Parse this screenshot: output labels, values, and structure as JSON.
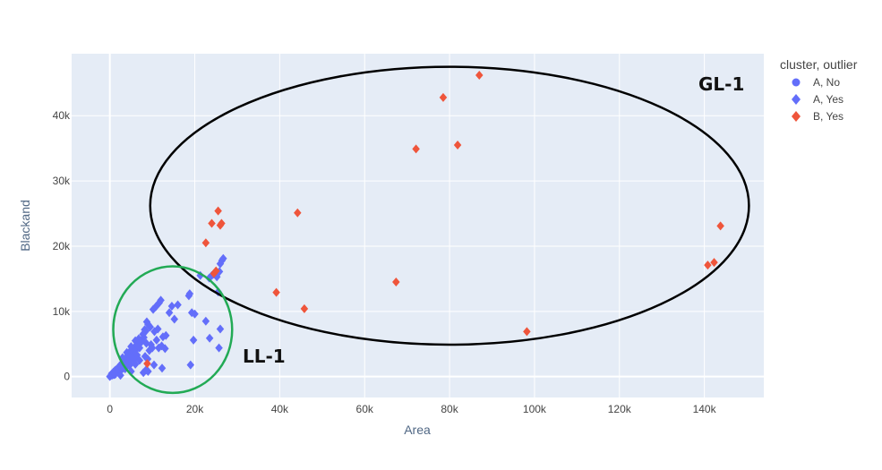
{
  "chart_data": {
    "type": "scatter",
    "xlabel": "Area",
    "ylabel": "Blackand",
    "xlim": [
      -9000,
      154000
    ],
    "ylim": [
      -3200,
      49500
    ],
    "x_ticks": [
      0,
      20000,
      40000,
      60000,
      80000,
      100000,
      120000,
      140000
    ],
    "x_tick_labels": [
      "0",
      "20k",
      "40k",
      "60k",
      "80k",
      "100k",
      "120k",
      "140k"
    ],
    "y_ticks": [
      0,
      10000,
      20000,
      30000,
      40000
    ],
    "y_tick_labels": [
      "0",
      "10k",
      "20k",
      "30k",
      "40k"
    ],
    "grid": true,
    "legend": {
      "title": "cluster, outlier",
      "placement": "top-right",
      "entries": [
        {
          "label": "A, No",
          "color": "#636efa",
          "symbol": "circle"
        },
        {
          "label": "A, Yes",
          "color": "#636efa",
          "symbol": "diamond"
        },
        {
          "label": "B, Yes",
          "color": "#ef553b",
          "symbol": "diamond"
        }
      ]
    },
    "series": [
      {
        "name": "A, No",
        "color": "#636efa",
        "symbol": "circle",
        "points": [
          [
            400,
            300
          ],
          [
            700,
            500
          ],
          [
            1000,
            700
          ],
          [
            1300,
            900
          ],
          [
            1600,
            1100
          ],
          [
            2000,
            1300
          ],
          [
            2400,
            1600
          ],
          [
            2800,
            1900
          ],
          [
            3200,
            2200
          ],
          [
            3600,
            2500
          ],
          [
            4000,
            2800
          ],
          [
            4500,
            3100
          ],
          [
            5000,
            3400
          ],
          [
            5500,
            3800
          ],
          [
            6000,
            4100
          ],
          [
            1500,
            600
          ],
          [
            2500,
            1000
          ],
          [
            3500,
            1500
          ],
          [
            4500,
            2000
          ],
          [
            5500,
            2600
          ],
          [
            3000,
            1200
          ],
          [
            4200,
            1800
          ],
          [
            900,
            200
          ],
          [
            1800,
            900
          ],
          [
            2700,
            1400
          ]
        ]
      },
      {
        "name": "A, Yes",
        "color": "#636efa",
        "symbol": "diamond",
        "points": [
          [
            0,
            0
          ],
          [
            500,
            200
          ],
          [
            1000,
            500
          ],
          [
            1500,
            800
          ],
          [
            2000,
            1100
          ],
          [
            2500,
            1300
          ],
          [
            3000,
            1600
          ],
          [
            3500,
            2000
          ],
          [
            4000,
            2400
          ],
          [
            4500,
            2800
          ],
          [
            5000,
            3200
          ],
          [
            5500,
            3600
          ],
          [
            6000,
            4000
          ],
          [
            6500,
            4500
          ],
          [
            7000,
            5000
          ],
          [
            7500,
            5400
          ],
          [
            8000,
            6000
          ],
          [
            8500,
            7000
          ],
          [
            9000,
            8000
          ],
          [
            9500,
            7600
          ],
          [
            8700,
            8400
          ],
          [
            8200,
            7200
          ],
          [
            7800,
            6500
          ],
          [
            6800,
            5800
          ],
          [
            6200,
            4800
          ],
          [
            5600,
            4200
          ],
          [
            5200,
            3000
          ],
          [
            4800,
            3900
          ],
          [
            4300,
            3300
          ],
          [
            3800,
            2700
          ],
          [
            3300,
            1800
          ],
          [
            2800,
            1500
          ],
          [
            2200,
            900
          ],
          [
            1800,
            700
          ],
          [
            1200,
            400
          ],
          [
            3000,
            2900
          ],
          [
            4000,
            3700
          ],
          [
            5000,
            4600
          ],
          [
            6000,
            5500
          ],
          [
            7000,
            4400
          ],
          [
            7200,
            5300
          ],
          [
            5800,
            2600
          ],
          [
            4600,
            1700
          ],
          [
            3600,
            1200
          ],
          [
            6400,
            3300
          ],
          [
            8600,
            5100
          ],
          [
            10200,
            10300
          ],
          [
            10800,
            10700
          ],
          [
            11600,
            11300
          ],
          [
            12000,
            11700
          ],
          [
            10500,
            6900
          ],
          [
            11000,
            5600
          ],
          [
            12500,
            6100
          ],
          [
            13200,
            6300
          ],
          [
            11500,
            4400
          ],
          [
            12200,
            4700
          ],
          [
            13000,
            4300
          ],
          [
            9300,
            4000
          ],
          [
            10000,
            4400
          ],
          [
            8900,
            2700
          ],
          [
            10400,
            1800
          ],
          [
            9000,
            800
          ],
          [
            7900,
            600
          ],
          [
            8500,
            1000
          ],
          [
            12300,
            1300
          ],
          [
            14000,
            9800
          ],
          [
            14600,
            10800
          ],
          [
            16000,
            11000
          ],
          [
            15200,
            8800
          ],
          [
            18600,
            12400
          ],
          [
            18800,
            12700
          ],
          [
            19300,
            9800
          ],
          [
            20000,
            9600
          ],
          [
            19700,
            5600
          ],
          [
            19000,
            1800
          ],
          [
            21300,
            15500
          ],
          [
            22600,
            8500
          ],
          [
            23500,
            5900
          ],
          [
            25500,
            13000
          ],
          [
            25200,
            15300
          ],
          [
            25800,
            16100
          ],
          [
            26000,
            17300
          ],
          [
            26400,
            17800
          ],
          [
            26700,
            18100
          ],
          [
            26000,
            7300
          ],
          [
            25700,
            4400
          ],
          [
            23400,
            15100
          ],
          [
            24000,
            15500
          ],
          [
            24500,
            15700
          ],
          [
            2500,
            200
          ],
          [
            5000,
            800
          ],
          [
            6000,
            1900
          ],
          [
            7000,
            2500
          ],
          [
            9700,
            4900
          ],
          [
            11300,
            7300
          ],
          [
            8300,
            3100
          ]
        ]
      },
      {
        "name": "B, Yes",
        "color": "#ef553b",
        "symbol": "diamond",
        "points": [
          [
            8800,
            2000
          ],
          [
            22600,
            20500
          ],
          [
            24000,
            23500
          ],
          [
            24500,
            15800
          ],
          [
            25000,
            16200
          ],
          [
            25500,
            25400
          ],
          [
            26000,
            23200
          ],
          [
            26300,
            23500
          ],
          [
            39200,
            12900
          ],
          [
            44200,
            25100
          ],
          [
            45800,
            10400
          ],
          [
            67400,
            14500
          ],
          [
            72100,
            34900
          ],
          [
            78500,
            42800
          ],
          [
            81900,
            35500
          ],
          [
            87000,
            46200
          ],
          [
            98200,
            6900
          ],
          [
            140800,
            17100
          ],
          [
            142300,
            17500
          ],
          [
            143800,
            23100
          ]
        ]
      }
    ],
    "annotations": [
      {
        "label": "GL-1",
        "shape": "ellipse",
        "color": "#000000",
        "cx": 80000,
        "cy": 26200,
        "rx": 70500,
        "ry": 21300
      },
      {
        "label": "LL-1",
        "shape": "ellipse",
        "color": "#22aa55",
        "cx": 14800,
        "cy": 7200,
        "rx": 14000,
        "ry": 9700
      }
    ]
  }
}
